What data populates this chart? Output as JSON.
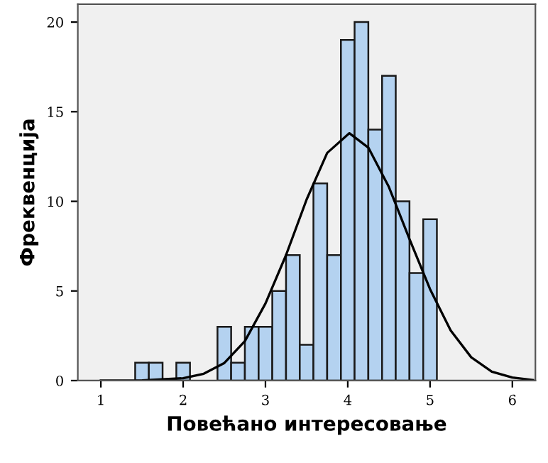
{
  "chart_data": {
    "type": "histogram",
    "xlabel": "Повећано интересовање",
    "ylabel": "Фреквенција",
    "bins": [
      1.417,
      1.583,
      1.75,
      1.917,
      2.083,
      2.25,
      2.417,
      2.583,
      2.75,
      2.917,
      3.083,
      3.25,
      3.417,
      3.583,
      3.75,
      3.917,
      4.083,
      4.25,
      4.417,
      4.583,
      4.75,
      4.917,
      5.083
    ],
    "values": [
      1,
      1,
      0,
      1,
      0,
      0,
      3,
      1,
      3,
      3,
      5,
      7,
      2,
      11,
      7,
      19,
      20,
      14,
      17,
      10,
      6,
      9
    ],
    "color": "#b4d2f0",
    "series": [
      {
        "type": "line",
        "color": "#000000",
        "x": [
          1.0,
          1.5,
          2.0,
          2.25,
          2.5,
          2.75,
          3.0,
          3.25,
          3.5,
          3.75,
          4.02,
          4.25,
          4.5,
          4.75,
          5.0,
          5.25,
          5.5,
          5.75,
          6.0,
          6.25
        ],
        "values": [
          0,
          0.01,
          0.13,
          0.38,
          0.98,
          2.2,
          4.3,
          7.0,
          10.1,
          12.7,
          13.8,
          13.0,
          10.8,
          7.9,
          5.1,
          2.8,
          1.3,
          0.5,
          0.17,
          0.03
        ]
      }
    ],
    "xlim": [
      0.72,
      6.28
    ],
    "ylim": [
      0,
      21
    ],
    "xticks": [
      1,
      2,
      3,
      4,
      5,
      6
    ],
    "yticks": [
      0,
      5,
      10,
      15,
      20
    ],
    "grid": false,
    "legend": false
  }
}
